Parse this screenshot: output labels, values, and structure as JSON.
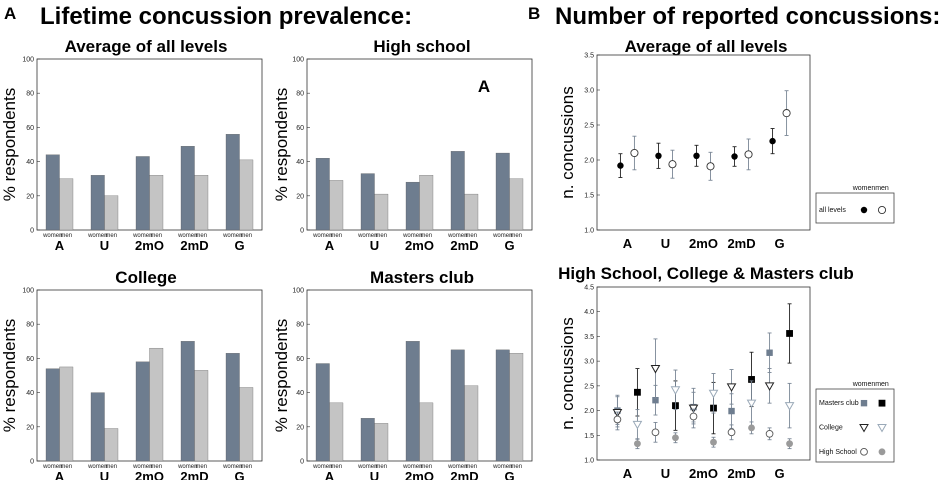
{
  "panels": {
    "a": {
      "label": "A",
      "title": "Lifetime concussion prevalence:"
    },
    "b": {
      "label": "B",
      "title": "Number of reported concussions:"
    }
  },
  "colors": {
    "women_bar": "#6e7d8f",
    "men_bar": "#c4c4c4",
    "masters_women": "#6e7d8f",
    "masters_men": "#000000",
    "college_women": "#222222",
    "college_men": "#9aa9b8",
    "high_school_women": "#9a9a9a",
    "high_school_men": "#9aa0a8"
  },
  "chart_data": [
    {
      "type": "bar",
      "title": "Average of all levels",
      "ylabel": "% respondents",
      "ylim": [
        0,
        100
      ],
      "yticks": [
        0,
        20,
        40,
        60,
        80,
        100
      ],
      "categories": [
        "A",
        "U",
        "2mO",
        "2mD",
        "G"
      ],
      "sub_labels": [
        "women",
        "men"
      ],
      "series": [
        {
          "name": "women",
          "values": [
            44,
            32,
            43,
            49,
            56
          ]
        },
        {
          "name": "men",
          "values": [
            30,
            20,
            32,
            32,
            41
          ]
        }
      ]
    },
    {
      "type": "bar",
      "title": "High school",
      "annotation": "A",
      "ylabel": "% respondents",
      "ylim": [
        0,
        100
      ],
      "yticks": [
        0,
        20,
        40,
        60,
        80,
        100
      ],
      "categories": [
        "A",
        "U",
        "2mO",
        "2mD",
        "G"
      ],
      "sub_labels": [
        "women",
        "men"
      ],
      "series": [
        {
          "name": "women",
          "values": [
            42,
            33,
            28,
            46,
            45
          ]
        },
        {
          "name": "men",
          "values": [
            29,
            21,
            32,
            21,
            30
          ]
        }
      ]
    },
    {
      "type": "bar",
      "title": "College",
      "ylabel": "% respondents",
      "ylim": [
        0,
        100
      ],
      "yticks": [
        0,
        20,
        40,
        60,
        80,
        100
      ],
      "categories": [
        "A",
        "U",
        "2mO",
        "2mD",
        "G"
      ],
      "sub_labels": [
        "women",
        "men"
      ],
      "series": [
        {
          "name": "women",
          "values": [
            54,
            40,
            58,
            70,
            63
          ]
        },
        {
          "name": "men",
          "values": [
            55,
            19,
            66,
            53,
            43
          ]
        }
      ]
    },
    {
      "type": "bar",
      "title": "Masters club",
      "ylabel": "% respondents",
      "ylim": [
        0,
        100
      ],
      "yticks": [
        0,
        20,
        40,
        60,
        80,
        100
      ],
      "categories": [
        "A",
        "U",
        "2mO",
        "2mD",
        "G"
      ],
      "sub_labels": [
        "women",
        "men"
      ],
      "series": [
        {
          "name": "women",
          "values": [
            57,
            25,
            70,
            65,
            65
          ]
        },
        {
          "name": "men",
          "values": [
            34,
            22,
            34,
            44,
            63
          ]
        }
      ]
    },
    {
      "type": "scatter",
      "title": "Average of all levels",
      "ylabel": "n. concussions",
      "ylim": [
        1.0,
        3.5
      ],
      "yticks": [
        1.0,
        1.5,
        2.0,
        2.5,
        3.0,
        3.5
      ],
      "categories": [
        "A",
        "U",
        "2mO",
        "2mD",
        "G"
      ],
      "legend": {
        "header": [
          "women",
          "men"
        ],
        "rows": [
          "all levels"
        ]
      },
      "series": [
        {
          "name": "all levels women",
          "marker": "circle-filled",
          "values": [
            1.92,
            2.06,
            2.06,
            2.05,
            2.27
          ],
          "err": [
            0.17,
            0.18,
            0.15,
            0.14,
            0.18
          ]
        },
        {
          "name": "all levels men",
          "marker": "circle-open",
          "values": [
            2.1,
            1.94,
            1.91,
            2.08,
            2.67
          ],
          "err": [
            0.24,
            0.2,
            0.2,
            0.22,
            0.32
          ]
        }
      ]
    },
    {
      "type": "scatter",
      "title": "High School,  College & Masters club",
      "ylabel": "n. concussions",
      "ylim": [
        1.0,
        4.5
      ],
      "yticks": [
        1.0,
        1.5,
        2.0,
        2.5,
        3.0,
        3.5,
        4.0,
        4.5
      ],
      "categories": [
        "A",
        "U",
        "2mO",
        "2mD",
        "G"
      ],
      "legend": {
        "header": [
          "women",
          "men"
        ],
        "rows": [
          "Masters club",
          "College",
          "High School"
        ]
      },
      "series": [
        {
          "name": "Masters club women",
          "marker": "square-gray",
          "values": [
            2.0,
            2.21,
            2.07,
            1.99,
            3.17
          ],
          "err": [
            0.28,
            0.3,
            0.3,
            0.35,
            0.4
          ]
        },
        {
          "name": "Masters club men",
          "marker": "square-black",
          "values": [
            2.37,
            2.1,
            2.05,
            2.63,
            3.56
          ],
          "err": [
            0.48,
            0.5,
            0.52,
            0.55,
            0.6
          ]
        },
        {
          "name": "College women",
          "marker": "triangle-open-dark",
          "values": [
            1.96,
            2.85,
            2.05,
            2.48,
            2.5
          ],
          "err": [
            0.35,
            0.6,
            0.4,
            0.35,
            0.35
          ]
        },
        {
          "name": "College men",
          "marker": "triangle-open-light",
          "values": [
            1.72,
            2.42,
            2.35,
            2.15,
            2.1
          ],
          "err": [
            0.3,
            0.4,
            0.4,
            0.45,
            0.45
          ]
        },
        {
          "name": "High School women",
          "marker": "circle-open-gray",
          "values": [
            1.82,
            1.56,
            1.88,
            1.56,
            1.53
          ],
          "err": [
            0.15,
            0.2,
            0.15,
            0.15,
            0.12
          ]
        },
        {
          "name": "High School men",
          "marker": "circle-filled-gray",
          "values": [
            1.33,
            1.45,
            1.36,
            1.65,
            1.33
          ],
          "err": [
            0.1,
            0.1,
            0.1,
            0.12,
            0.1
          ]
        }
      ]
    }
  ]
}
